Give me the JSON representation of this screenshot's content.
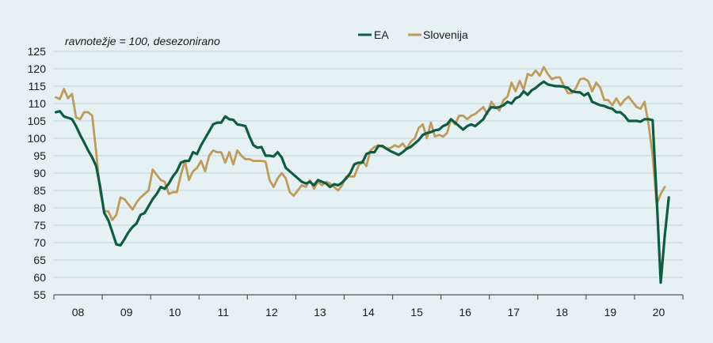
{
  "chart_data": {
    "type": "line",
    "title": "",
    "annotation": "ravnotežje = 100, desezonirano",
    "xlabel": "",
    "ylabel": "",
    "ylim": [
      55,
      125
    ],
    "yticks": [
      55,
      60,
      65,
      70,
      75,
      80,
      85,
      90,
      95,
      100,
      105,
      110,
      115,
      120,
      125
    ],
    "xlim": [
      "2008-01",
      "2020-12"
    ],
    "x_tick_labels": [
      "08",
      "09",
      "10",
      "11",
      "12",
      "13",
      "14",
      "15",
      "16",
      "17",
      "18",
      "19",
      "20"
    ],
    "grid": true,
    "legend": "top-center",
    "x_start": "2008-01",
    "frequency": "monthly",
    "series": [
      {
        "name": "EA",
        "color": "#0f5c43",
        "values": [
          107.5,
          107.8,
          106.3,
          105.9,
          105.5,
          103.5,
          101.0,
          98.8,
          96.5,
          94.5,
          92.0,
          86.0,
          78.5,
          76.5,
          73.0,
          69.5,
          69.2,
          71.0,
          73.0,
          74.5,
          75.5,
          78.0,
          78.5,
          80.5,
          82.5,
          84.0,
          86.0,
          85.5,
          87.0,
          89.0,
          90.5,
          93.0,
          93.5,
          93.5,
          96.0,
          95.5,
          98.0,
          100.0,
          102.0,
          104.0,
          104.5,
          104.5,
          106.3,
          105.5,
          105.3,
          104.0,
          103.8,
          103.5,
          100.5,
          98.0,
          97.3,
          97.5,
          95.0,
          95.0,
          94.8,
          96.0,
          94.5,
          91.5,
          90.5,
          89.5,
          88.5,
          87.5,
          87.0,
          87.5,
          86.5,
          88.0,
          87.5,
          87.0,
          86.0,
          86.8,
          86.5,
          87.3,
          88.5,
          90.0,
          92.5,
          93.0,
          93.0,
          95.5,
          96.0,
          96.0,
          97.8,
          97.8,
          97.0,
          96.3,
          95.8,
          95.2,
          96.0,
          97.0,
          97.5,
          98.5,
          99.5,
          101.0,
          101.5,
          101.8,
          102.3,
          102.5,
          103.5,
          104.0,
          105.5,
          104.5,
          103.5,
          102.5,
          103.5,
          104.0,
          103.5,
          104.5,
          105.5,
          107.5,
          109.0,
          108.8,
          109.0,
          109.5,
          110.5,
          110.0,
          111.5,
          112.0,
          113.5,
          112.5,
          113.8,
          114.5,
          115.5,
          116.3,
          115.5,
          115.2,
          115.0,
          115.0,
          114.8,
          114.5,
          113.5,
          113.3,
          113.2,
          112.3,
          113.0,
          110.5,
          110.0,
          109.5,
          109.3,
          108.8,
          108.5,
          107.5,
          107.5,
          106.5,
          105.0,
          105.0,
          105.0,
          104.8,
          105.5,
          105.5,
          105.2,
          83.0,
          58.5,
          72.0,
          83.0
        ]
      },
      {
        "name": "Slovenija",
        "color": "#bf9b5c",
        "values": [
          111.8,
          111.3,
          114.2,
          111.5,
          112.8,
          106.0,
          105.5,
          107.5,
          107.5,
          106.5,
          96.0,
          84.5,
          79.0,
          79.0,
          76.5,
          78.0,
          83.0,
          82.5,
          81.0,
          79.5,
          81.5,
          83.0,
          84.0,
          85.0,
          91.0,
          89.5,
          88.0,
          87.5,
          84.0,
          84.5,
          84.5,
          89.5,
          93.5,
          88.0,
          90.5,
          91.5,
          93.5,
          90.5,
          95.0,
          96.5,
          96.0,
          96.0,
          93.0,
          96.0,
          92.5,
          96.5,
          95.0,
          94.0,
          94.0,
          93.5,
          93.5,
          93.5,
          93.3,
          88.0,
          86.0,
          88.5,
          90.0,
          88.5,
          84.5,
          83.5,
          85.0,
          86.5,
          86.0,
          88.0,
          85.5,
          87.5,
          86.5,
          87.5,
          87.0,
          86.0,
          85.0,
          86.5,
          89.0,
          89.0,
          89.0,
          92.0,
          93.5,
          92.0,
          96.5,
          97.5,
          98.0,
          97.5,
          97.0,
          97.2,
          98.0,
          97.5,
          98.5,
          97.0,
          99.0,
          100.0,
          103.0,
          104.0,
          100.0,
          104.5,
          100.5,
          101.0,
          100.5,
          101.5,
          105.5,
          104.0,
          106.5,
          106.5,
          105.5,
          106.5,
          107.0,
          108.0,
          109.0,
          107.0,
          110.5,
          109.0,
          108.0,
          111.0,
          112.0,
          116.0,
          113.5,
          116.5,
          114.0,
          118.5,
          118.0,
          119.5,
          118.0,
          120.5,
          118.5,
          117.0,
          117.5,
          117.5,
          115.0,
          113.0,
          113.0,
          114.5,
          117.0,
          117.2,
          116.5,
          113.5,
          116.0,
          114.5,
          111.0,
          111.0,
          109.5,
          111.5,
          109.5,
          111.0,
          112.0,
          110.5,
          109.0,
          108.5,
          110.5,
          104.0,
          95.0,
          81.0,
          84.0,
          86.0
        ]
      }
    ]
  }
}
